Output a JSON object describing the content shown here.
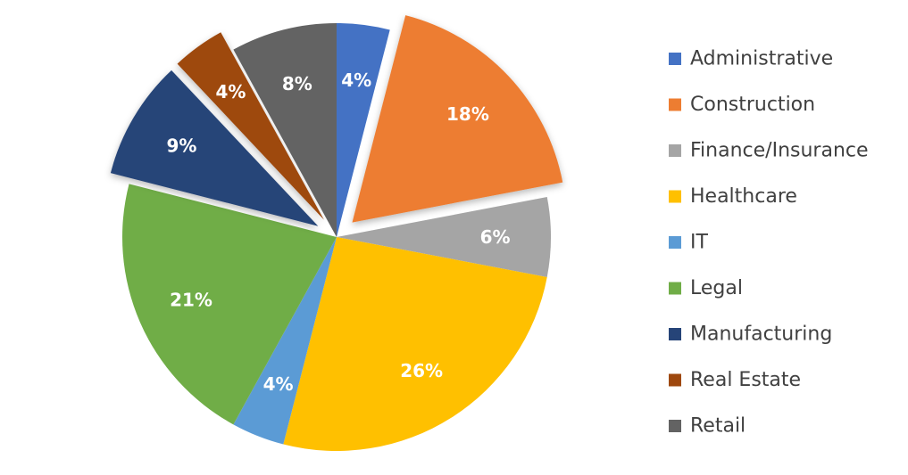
{
  "chart_data": {
    "type": "pie",
    "title": "",
    "legend_position": "right",
    "data_labels": "percent",
    "start_angle_deg": 0,
    "direction": "clockwise",
    "slices": [
      {
        "name": "Administrative",
        "value": 4,
        "label": "4%",
        "color": "#4472C4",
        "exploded": false
      },
      {
        "name": "Construction",
        "value": 18,
        "label": "18%",
        "color": "#ED7D31",
        "exploded": true
      },
      {
        "name": "Finance/Insurance",
        "value": 6,
        "label": "6%",
        "color": "#A5A5A5",
        "exploded": false
      },
      {
        "name": "Healthcare",
        "value": 26,
        "label": "26%",
        "color": "#FFC000",
        "exploded": false
      },
      {
        "name": "IT",
        "value": 4,
        "label": "4%",
        "color": "#5B9BD5",
        "exploded": false
      },
      {
        "name": "Legal",
        "value": 21,
        "label": "21%",
        "color": "#70AD47",
        "exploded": false
      },
      {
        "name": "Manufacturing",
        "value": 9,
        "label": "9%",
        "color": "#264478",
        "exploded": true
      },
      {
        "name": "Real Estate",
        "value": 4,
        "label": "4%",
        "color": "#9E480E",
        "exploded": true
      },
      {
        "name": "Retail",
        "value": 8,
        "label": "8%",
        "color": "#636363",
        "exploded": false
      }
    ]
  }
}
